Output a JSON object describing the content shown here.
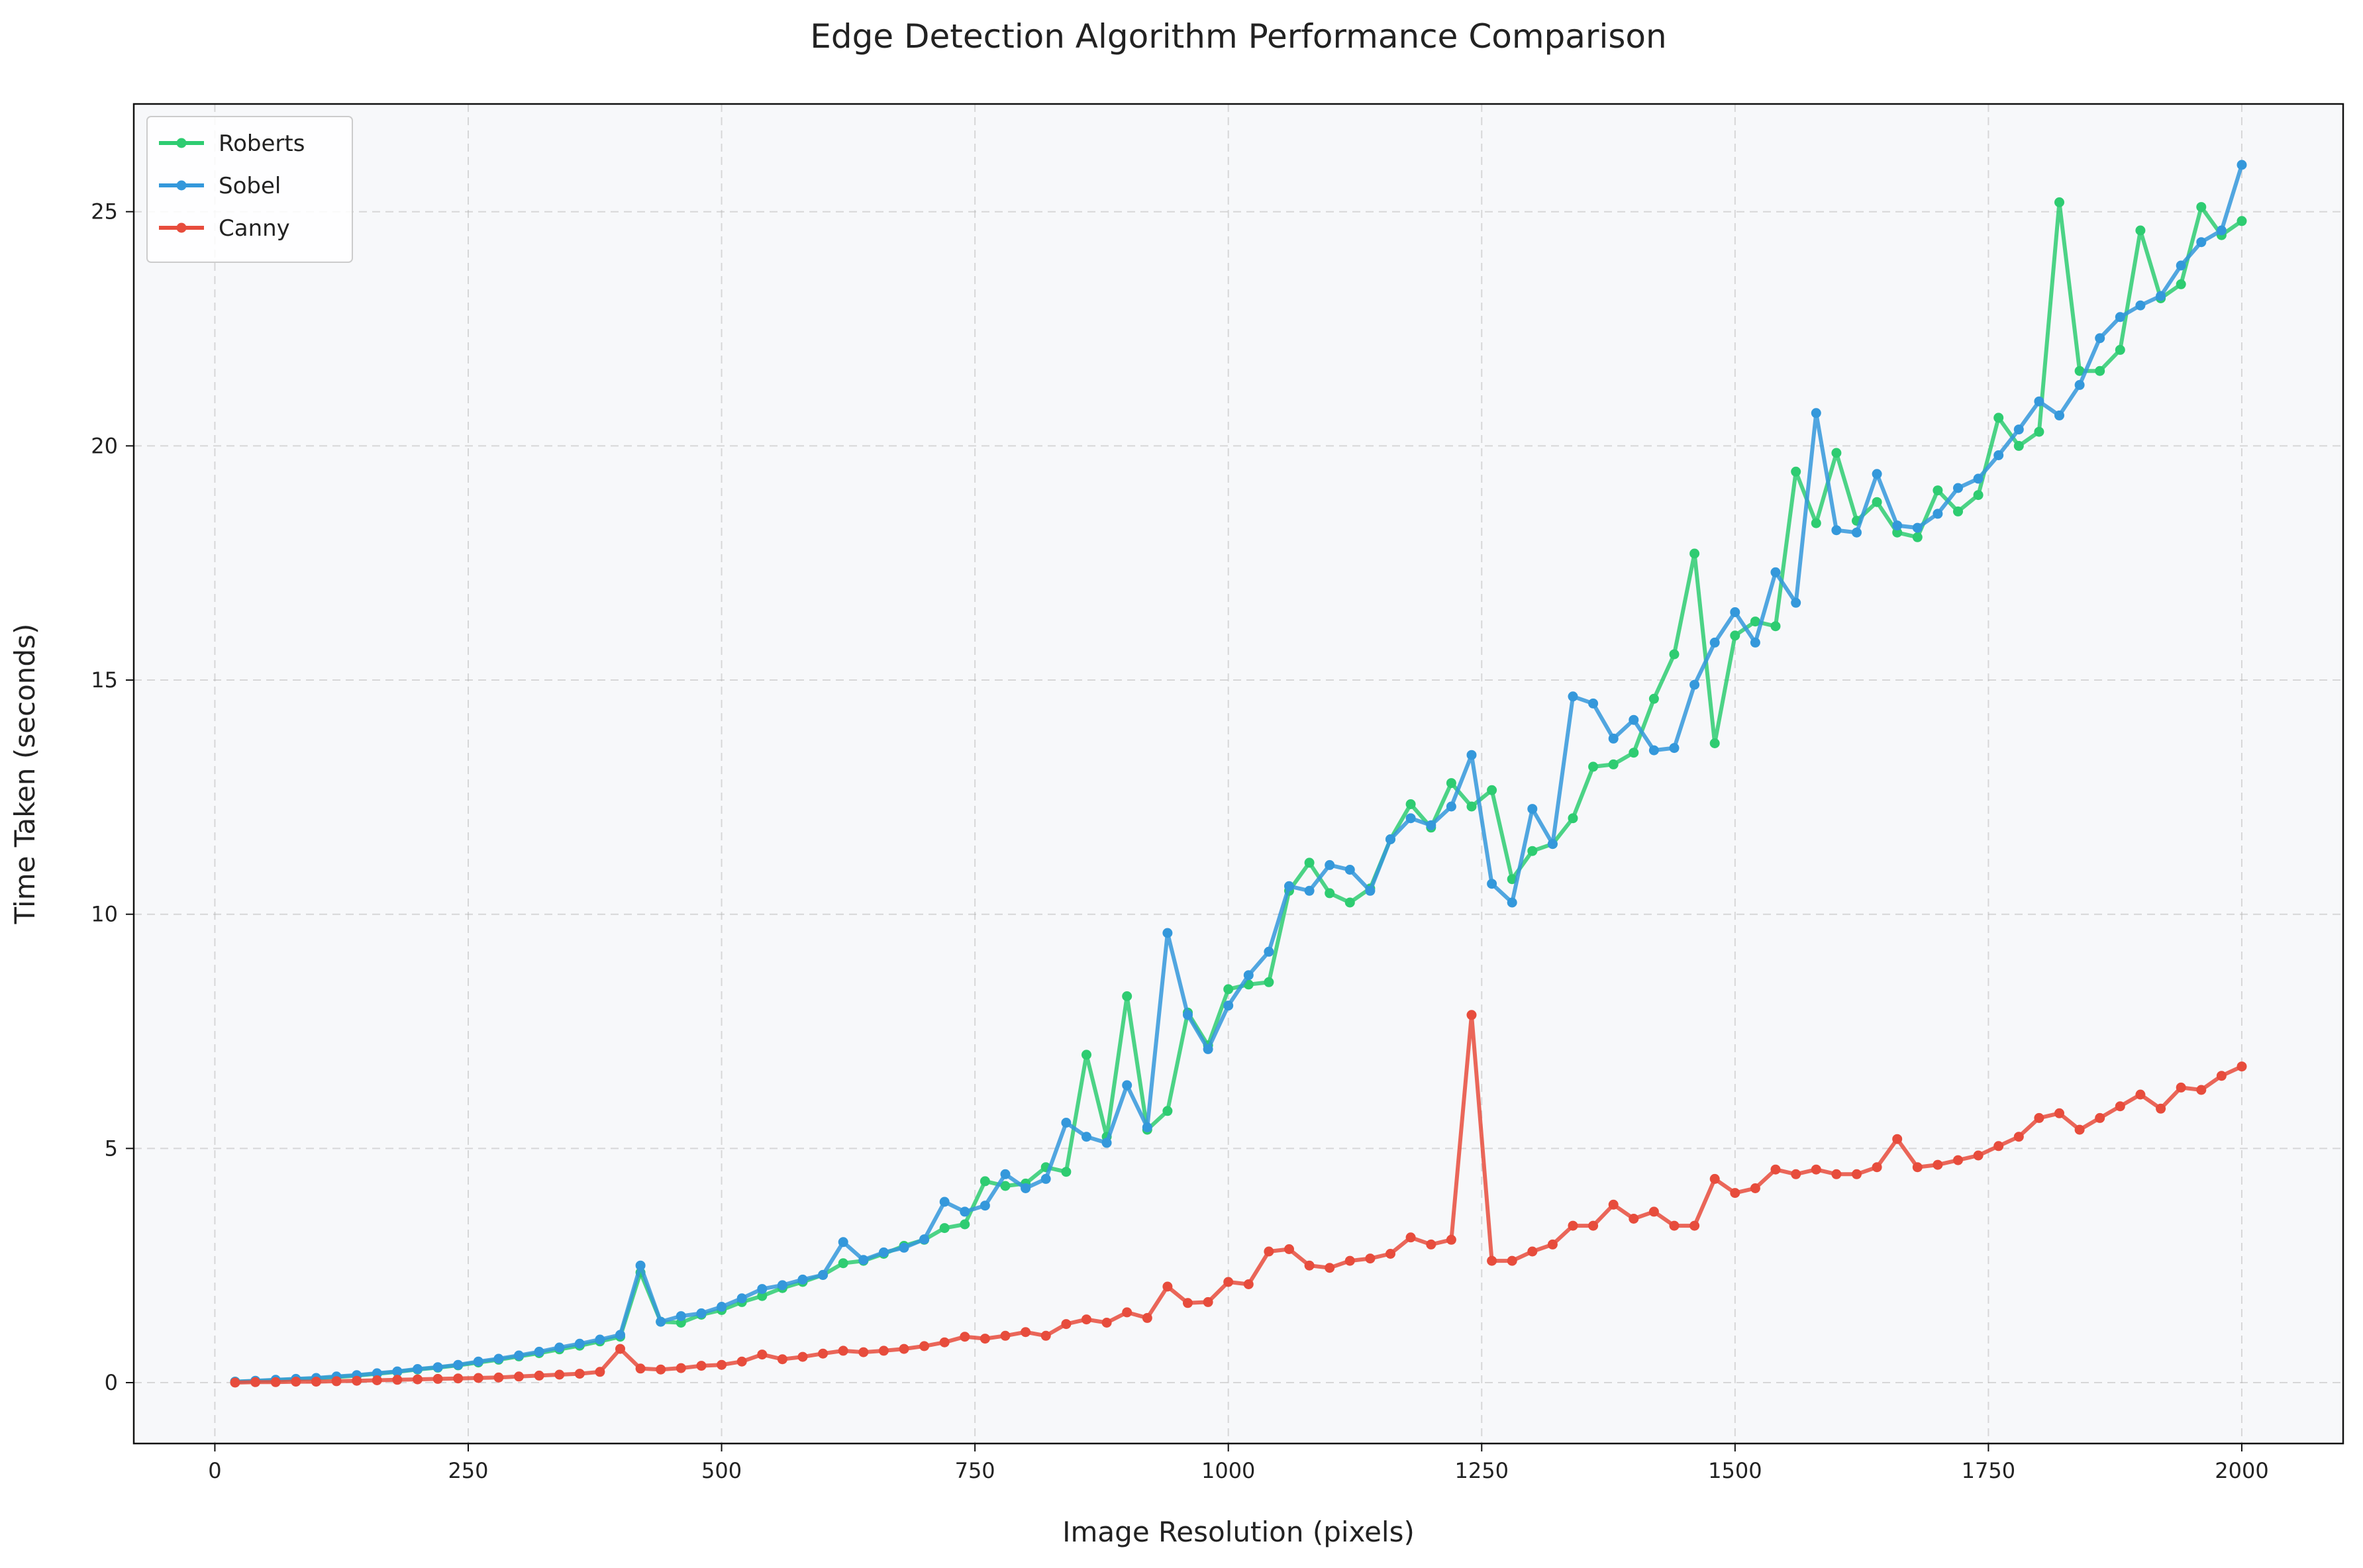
{
  "chart_data": {
    "type": "line",
    "title": "Edge Detection Algorithm Performance Comparison",
    "xlabel": "Image Resolution (pixels)",
    "ylabel": "Time Taken (seconds)",
    "xlim": [
      -80,
      2100
    ],
    "ylim": [
      -1.3,
      27.3
    ],
    "xticks": [
      0,
      250,
      500,
      750,
      1000,
      1250,
      1500,
      1750,
      2000
    ],
    "yticks": [
      0,
      5,
      10,
      15,
      20,
      25
    ],
    "grid": true,
    "legend_position": "top-left",
    "plot_background": "#f7f8fa",
    "x": [
      20,
      40,
      60,
      80,
      100,
      120,
      140,
      160,
      180,
      200,
      220,
      240,
      260,
      280,
      300,
      320,
      340,
      360,
      380,
      400,
      420,
      440,
      460,
      480,
      500,
      520,
      540,
      560,
      580,
      600,
      620,
      640,
      660,
      680,
      700,
      720,
      740,
      760,
      780,
      800,
      820,
      840,
      860,
      880,
      900,
      920,
      940,
      960,
      980,
      1000,
      1020,
      1040,
      1060,
      1080,
      1100,
      1120,
      1140,
      1160,
      1180,
      1200,
      1220,
      1240,
      1260,
      1280,
      1300,
      1320,
      1340,
      1360,
      1380,
      1400,
      1420,
      1440,
      1460,
      1480,
      1500,
      1520,
      1540,
      1560,
      1580,
      1600,
      1620,
      1640,
      1660,
      1680,
      1700,
      1720,
      1740,
      1760,
      1780,
      1800,
      1820,
      1840,
      1860,
      1880,
      1900,
      1920,
      1940,
      1960,
      1980,
      2000
    ],
    "series": [
      {
        "name": "Roberts",
        "color": "#2ecc71",
        "values": [
          0.02,
          0.03,
          0.05,
          0.07,
          0.09,
          0.12,
          0.15,
          0.19,
          0.23,
          0.28,
          0.32,
          0.37,
          0.43,
          0.49,
          0.56,
          0.63,
          0.71,
          0.79,
          0.88,
          0.98,
          2.35,
          1.3,
          1.28,
          1.45,
          1.55,
          1.72,
          1.85,
          2.02,
          2.15,
          2.3,
          2.55,
          2.6,
          2.75,
          2.92,
          3.05,
          3.3,
          3.38,
          4.3,
          4.2,
          4.25,
          4.6,
          4.5,
          7.0,
          5.25,
          8.25,
          5.4,
          5.8,
          7.9,
          7.2,
          8.4,
          8.5,
          8.55,
          10.5,
          11.1,
          10.45,
          10.25,
          10.55,
          11.6,
          12.35,
          11.85,
          12.8,
          12.3,
          12.65,
          10.75,
          11.35,
          11.5,
          12.05,
          13.15,
          13.2,
          13.45,
          14.6,
          15.55,
          17.7,
          13.65,
          15.95,
          16.25,
          16.15,
          19.45,
          18.35,
          19.85,
          18.4,
          18.8,
          18.15,
          18.05,
          19.05,
          18.6,
          18.95,
          20.6,
          20.0,
          20.3,
          25.2,
          21.6,
          21.6,
          22.05,
          24.6,
          23.15,
          23.45,
          25.1,
          24.5,
          24.8
        ]
      },
      {
        "name": "Sobel",
        "color": "#3498db",
        "values": [
          0.02,
          0.04,
          0.06,
          0.08,
          0.1,
          0.13,
          0.16,
          0.2,
          0.24,
          0.29,
          0.33,
          0.38,
          0.45,
          0.51,
          0.58,
          0.66,
          0.75,
          0.83,
          0.92,
          1.02,
          2.5,
          1.3,
          1.42,
          1.48,
          1.62,
          1.8,
          2.0,
          2.08,
          2.2,
          2.3,
          3.0,
          2.62,
          2.78,
          2.88,
          3.06,
          3.86,
          3.65,
          3.78,
          4.45,
          4.15,
          4.35,
          5.55,
          5.25,
          5.12,
          6.35,
          5.45,
          9.6,
          7.85,
          7.12,
          8.05,
          8.7,
          9.2,
          10.6,
          10.5,
          11.05,
          10.95,
          10.5,
          11.6,
          12.05,
          11.9,
          12.3,
          13.4,
          10.65,
          10.25,
          12.25,
          11.5,
          14.65,
          14.5,
          13.75,
          14.15,
          13.5,
          13.55,
          14.9,
          15.8,
          16.45,
          15.8,
          17.3,
          16.65,
          20.7,
          18.2,
          18.15,
          19.4,
          18.3,
          18.25,
          18.55,
          19.1,
          19.3,
          19.8,
          20.35,
          20.95,
          20.65,
          21.3,
          22.3,
          22.75,
          23.0,
          23.2,
          23.85,
          24.35,
          24.6,
          26.0
        ]
      },
      {
        "name": "Canny",
        "color": "#e74c3c",
        "values": [
          0.0,
          0.01,
          0.01,
          0.02,
          0.02,
          0.03,
          0.04,
          0.05,
          0.06,
          0.07,
          0.08,
          0.09,
          0.1,
          0.11,
          0.13,
          0.15,
          0.17,
          0.19,
          0.23,
          0.72,
          0.3,
          0.28,
          0.31,
          0.36,
          0.38,
          0.45,
          0.6,
          0.5,
          0.55,
          0.62,
          0.68,
          0.65,
          0.68,
          0.72,
          0.78,
          0.86,
          0.98,
          0.94,
          1.0,
          1.08,
          1.0,
          1.25,
          1.35,
          1.28,
          1.5,
          1.38,
          2.05,
          1.7,
          1.72,
          2.15,
          2.1,
          2.8,
          2.85,
          2.5,
          2.45,
          2.6,
          2.65,
          2.75,
          3.1,
          2.95,
          3.05,
          7.85,
          2.6,
          2.6,
          2.8,
          2.95,
          3.35,
          3.35,
          3.8,
          3.5,
          3.65,
          3.35,
          3.35,
          4.35,
          4.05,
          4.15,
          4.55,
          4.45,
          4.55,
          4.45,
          4.45,
          4.6,
          5.2,
          4.6,
          4.65,
          4.75,
          4.85,
          5.05,
          5.25,
          5.65,
          5.75,
          5.4,
          5.65,
          5.9,
          6.15,
          5.85,
          6.3,
          6.25,
          6.55,
          6.75
        ]
      }
    ]
  }
}
